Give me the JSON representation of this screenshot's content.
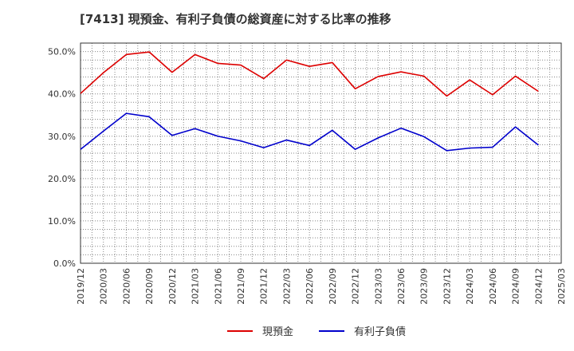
{
  "chart_data": {
    "type": "line",
    "title": "[7413]  現預金、有利子負債の総資産に対する比率の推移",
    "xlabel": "",
    "ylabel": "",
    "ylim": [
      0,
      52
    ],
    "yticks": [
      0,
      10,
      20,
      30,
      40,
      50
    ],
    "ytick_labels": [
      "0.0%",
      "10.0%",
      "20.0%",
      "30.0%",
      "40.0%",
      "50.0%"
    ],
    "categories": [
      "2019/12",
      "2020/03",
      "2020/06",
      "2020/09",
      "2020/12",
      "2021/03",
      "2021/06",
      "2021/09",
      "2021/12",
      "2022/03",
      "2022/06",
      "2022/09",
      "2022/12",
      "2023/03",
      "2023/06",
      "2023/09",
      "2023/12",
      "2024/03",
      "2024/06",
      "2024/09",
      "2024/12",
      "2025/03"
    ],
    "series": [
      {
        "name": "現預金",
        "color": "#dd0000",
        "values": [
          40.1,
          45.0,
          49.3,
          49.9,
          45.1,
          49.3,
          47.2,
          46.8,
          43.6,
          48.0,
          46.5,
          47.4,
          41.2,
          44.1,
          45.2,
          44.2,
          39.5,
          43.3,
          39.8,
          44.2,
          40.6,
          null
        ]
      },
      {
        "name": "有利子負債",
        "color": "#0000cc",
        "values": [
          26.9,
          31.2,
          35.4,
          34.6,
          30.2,
          31.8,
          30.0,
          28.9,
          27.3,
          29.1,
          27.8,
          31.4,
          26.9,
          29.6,
          31.9,
          29.9,
          26.6,
          27.2,
          27.4,
          32.2,
          27.9,
          null
        ]
      }
    ],
    "grid": true,
    "legend_position": "bottom-center"
  }
}
